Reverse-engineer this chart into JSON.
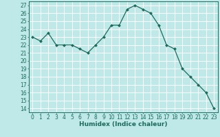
{
  "x": [
    0,
    1,
    2,
    3,
    4,
    5,
    6,
    7,
    8,
    9,
    10,
    11,
    12,
    13,
    14,
    15,
    16,
    17,
    18,
    19,
    20,
    21,
    22,
    23
  ],
  "y": [
    23,
    22.5,
    23.5,
    22,
    22,
    22,
    21.5,
    21,
    22,
    23,
    24.5,
    24.5,
    26.5,
    27,
    26.5,
    26,
    24.5,
    22,
    21.5,
    19,
    18,
    17,
    16,
    14
  ],
  "line_color": "#1a6b5a",
  "marker": "D",
  "marker_size": 2.0,
  "bg_color": "#bfe8e8",
  "grid_color": "#ffffff",
  "xlabel": "Humidex (Indice chaleur)",
  "xlim": [
    -0.5,
    23.5
  ],
  "ylim": [
    13.5,
    27.5
  ],
  "yticks": [
    14,
    15,
    16,
    17,
    18,
    19,
    20,
    21,
    22,
    23,
    24,
    25,
    26,
    27
  ],
  "xticks": [
    0,
    1,
    2,
    3,
    4,
    5,
    6,
    7,
    8,
    9,
    10,
    11,
    12,
    13,
    14,
    15,
    16,
    17,
    18,
    19,
    20,
    21,
    22,
    23
  ],
  "tick_fontsize": 5.5,
  "label_fontsize": 6.5
}
